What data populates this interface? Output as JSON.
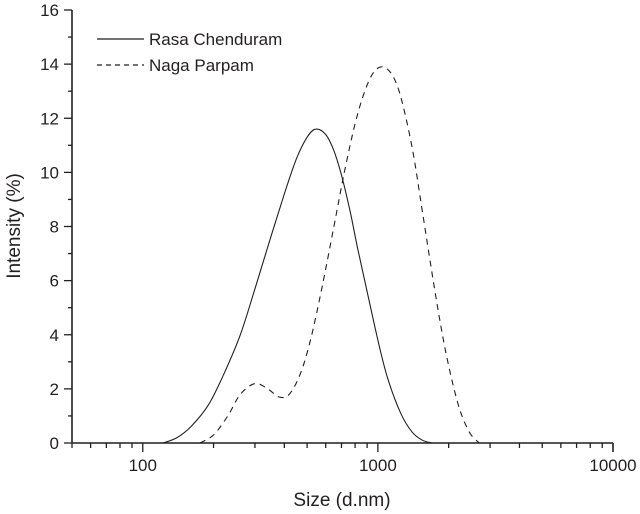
{
  "chart_data": {
    "type": "line",
    "title": "",
    "xlabel": "Size (d.nm)",
    "ylabel": "Intensity (%)",
    "xscale": "log",
    "xlim": [
      50,
      10000
    ],
    "ylim": [
      0,
      16
    ],
    "x_ticks": [
      100,
      1000,
      10000
    ],
    "x_tick_labels": [
      "100",
      "1000",
      "10000"
    ],
    "y_ticks": [
      0,
      2,
      4,
      6,
      8,
      10,
      12,
      14,
      16
    ],
    "y_tick_labels": [
      "0",
      "2",
      "4",
      "6",
      "8",
      "10",
      "12",
      "14",
      "16"
    ],
    "grid": false,
    "legend_position": "upper left",
    "series": [
      {
        "name": "Rasa Chenduram",
        "line_style": "solid",
        "color": "#231f20",
        "x": [
          122,
          140,
          160,
          190,
          220,
          260,
          300,
          350,
          400,
          450,
          500,
          545,
          600,
          650,
          700,
          760,
          820,
          900,
          1000,
          1100,
          1250,
          1400,
          1550,
          1700
        ],
        "y": [
          0,
          0.2,
          0.6,
          1.4,
          2.5,
          4.0,
          5.7,
          7.6,
          9.2,
          10.5,
          11.3,
          11.6,
          11.4,
          10.8,
          9.9,
          8.6,
          7.2,
          5.6,
          3.8,
          2.4,
          1.1,
          0.4,
          0.1,
          0
        ]
      },
      {
        "name": "Naga Parpam",
        "line_style": "dashed",
        "color": "#231f20",
        "x": [
          175,
          200,
          230,
          260,
          300,
          340,
          380,
          420,
          470,
          520,
          580,
          650,
          720,
          800,
          880,
          960,
          1050,
          1150,
          1250,
          1400,
          1550,
          1750,
          1950,
          2200,
          2450,
          2700
        ],
        "y": [
          0,
          0.3,
          1.0,
          1.8,
          2.2,
          2.0,
          1.7,
          1.8,
          2.6,
          3.9,
          5.8,
          8.0,
          10.0,
          11.8,
          13.0,
          13.7,
          13.9,
          13.6,
          12.8,
          10.9,
          8.5,
          5.6,
          3.3,
          1.4,
          0.4,
          0
        ]
      }
    ]
  },
  "legend": {
    "items": [
      {
        "label": "Rasa Chenduram",
        "style": "solid"
      },
      {
        "label": "Naga Parpam",
        "style": "dashed"
      }
    ]
  },
  "axes": {
    "xlabel": "Size (d.nm)",
    "ylabel": "Intensity (%)"
  },
  "colors": {
    "ink": "#231f20",
    "background": "#ffffff"
  }
}
